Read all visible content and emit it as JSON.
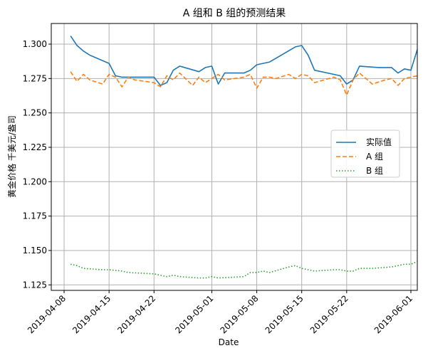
{
  "chart_data": {
    "type": "line",
    "title": "A 组和 B 组的预测结果",
    "xlabel": "Date",
    "ylabel": "黄金价格 千美元/盎司",
    "x_ticks": [
      "2019-04-08",
      "2019-04-15",
      "2019-04-22",
      "2019-05-01",
      "2019-05-08",
      "2019-05-15",
      "2019-05-22",
      "2019-06-01"
    ],
    "y_ticks": [
      "1.125",
      "1.150",
      "1.175",
      "1.200",
      "1.225",
      "1.250",
      "1.275",
      "1.300"
    ],
    "xlim": [
      "2019-04-06",
      "2019-06-02"
    ],
    "ylim": [
      1.121,
      1.315
    ],
    "grid": true,
    "legend_position": "center-right",
    "series": [
      {
        "name": "实际值",
        "color": "#1f77b4",
        "style": "solid",
        "points": [
          [
            "2019-04-09",
            1.306
          ],
          [
            "2019-04-10",
            1.299
          ],
          [
            "2019-04-11",
            1.295
          ],
          [
            "2019-04-12",
            1.292
          ],
          [
            "2019-04-15",
            1.286
          ],
          [
            "2019-04-16",
            1.277
          ],
          [
            "2019-04-17",
            1.276
          ],
          [
            "2019-04-18",
            1.276
          ],
          [
            "2019-04-22",
            1.276
          ],
          [
            "2019-04-23",
            1.27
          ],
          [
            "2019-04-24",
            1.272
          ],
          [
            "2019-04-25",
            1.281
          ],
          [
            "2019-04-26",
            1.284
          ],
          [
            "2019-04-29",
            1.28
          ],
          [
            "2019-04-30",
            1.283
          ],
          [
            "2019-05-01",
            1.284
          ],
          [
            "2019-05-02",
            1.271
          ],
          [
            "2019-05-03",
            1.279
          ],
          [
            "2019-05-06",
            1.279
          ],
          [
            "2019-05-07",
            1.281
          ],
          [
            "2019-05-08",
            1.285
          ],
          [
            "2019-05-10",
            1.287
          ],
          [
            "2019-05-14",
            1.298
          ],
          [
            "2019-05-15",
            1.299
          ],
          [
            "2019-05-16",
            1.292
          ],
          [
            "2019-05-17",
            1.281
          ],
          [
            "2019-05-20",
            1.278
          ],
          [
            "2019-05-21",
            1.277
          ],
          [
            "2019-05-22",
            1.271
          ],
          [
            "2019-05-23",
            1.274
          ],
          [
            "2019-05-24",
            1.284
          ],
          [
            "2019-05-27",
            1.283
          ],
          [
            "2019-05-28",
            1.283
          ],
          [
            "2019-05-29",
            1.283
          ],
          [
            "2019-05-30",
            1.279
          ],
          [
            "2019-05-31",
            1.282
          ],
          [
            "2019-06-01",
            1.281
          ],
          [
            "2019-06-02",
            1.296
          ]
        ]
      },
      {
        "name": "A 组",
        "color": "#ff7f0e",
        "style": "dashed",
        "points": [
          [
            "2019-04-09",
            1.28
          ],
          [
            "2019-04-10",
            1.273
          ],
          [
            "2019-04-11",
            1.278
          ],
          [
            "2019-04-12",
            1.274
          ],
          [
            "2019-04-14",
            1.271
          ],
          [
            "2019-04-15",
            1.278
          ],
          [
            "2019-04-16",
            1.276
          ],
          [
            "2019-04-17",
            1.269
          ],
          [
            "2019-04-18",
            1.276
          ],
          [
            "2019-04-19",
            1.274
          ],
          [
            "2019-04-22",
            1.272
          ],
          [
            "2019-04-23",
            1.269
          ],
          [
            "2019-04-24",
            1.277
          ],
          [
            "2019-04-25",
            1.274
          ],
          [
            "2019-04-26",
            1.279
          ],
          [
            "2019-04-28",
            1.27
          ],
          [
            "2019-04-29",
            1.276
          ],
          [
            "2019-04-30",
            1.272
          ],
          [
            "2019-05-01",
            1.275
          ],
          [
            "2019-05-02",
            1.278
          ],
          [
            "2019-05-03",
            1.274
          ],
          [
            "2019-05-06",
            1.276
          ],
          [
            "2019-05-07",
            1.278
          ],
          [
            "2019-05-08",
            1.268
          ],
          [
            "2019-05-09",
            1.276
          ],
          [
            "2019-05-10",
            1.276
          ],
          [
            "2019-05-11",
            1.275
          ],
          [
            "2019-05-13",
            1.278
          ],
          [
            "2019-05-14",
            1.275
          ],
          [
            "2019-05-15",
            1.278
          ],
          [
            "2019-05-16",
            1.277
          ],
          [
            "2019-05-17",
            1.272
          ],
          [
            "2019-05-20",
            1.276
          ],
          [
            "2019-05-21",
            1.274
          ],
          [
            "2019-05-22",
            1.263
          ],
          [
            "2019-05-23",
            1.274
          ],
          [
            "2019-05-24",
            1.279
          ],
          [
            "2019-05-26",
            1.271
          ],
          [
            "2019-05-28",
            1.274
          ],
          [
            "2019-05-29",
            1.275
          ],
          [
            "2019-05-30",
            1.27
          ],
          [
            "2019-05-31",
            1.275
          ],
          [
            "2019-06-02",
            1.277
          ]
        ]
      },
      {
        "name": "B 组",
        "color": "#2ca02c",
        "style": "dotted",
        "points": [
          [
            "2019-04-09",
            1.14
          ],
          [
            "2019-04-10",
            1.139
          ],
          [
            "2019-04-11",
            1.137
          ],
          [
            "2019-04-14",
            1.136
          ],
          [
            "2019-04-15",
            1.136
          ],
          [
            "2019-04-17",
            1.135
          ],
          [
            "2019-04-18",
            1.134
          ],
          [
            "2019-04-22",
            1.133
          ],
          [
            "2019-04-23",
            1.132
          ],
          [
            "2019-04-24",
            1.131
          ],
          [
            "2019-04-25",
            1.132
          ],
          [
            "2019-04-26",
            1.131
          ],
          [
            "2019-04-29",
            1.13
          ],
          [
            "2019-04-30",
            1.13
          ],
          [
            "2019-05-01",
            1.131
          ],
          [
            "2019-05-02",
            1.13
          ],
          [
            "2019-05-06",
            1.131
          ],
          [
            "2019-05-07",
            1.134
          ],
          [
            "2019-05-08",
            1.134
          ],
          [
            "2019-05-09",
            1.135
          ],
          [
            "2019-05-10",
            1.134
          ],
          [
            "2019-05-13",
            1.138
          ],
          [
            "2019-05-14",
            1.139
          ],
          [
            "2019-05-15",
            1.137
          ],
          [
            "2019-05-16",
            1.136
          ],
          [
            "2019-05-17",
            1.135
          ],
          [
            "2019-05-20",
            1.136
          ],
          [
            "2019-05-21",
            1.136
          ],
          [
            "2019-05-22",
            1.135
          ],
          [
            "2019-05-23",
            1.135
          ],
          [
            "2019-05-24",
            1.137
          ],
          [
            "2019-05-26",
            1.137
          ],
          [
            "2019-05-29",
            1.138
          ],
          [
            "2019-05-30",
            1.139
          ],
          [
            "2019-05-31",
            1.14
          ],
          [
            "2019-06-01",
            1.14
          ],
          [
            "2019-06-02",
            1.142
          ]
        ]
      }
    ]
  }
}
